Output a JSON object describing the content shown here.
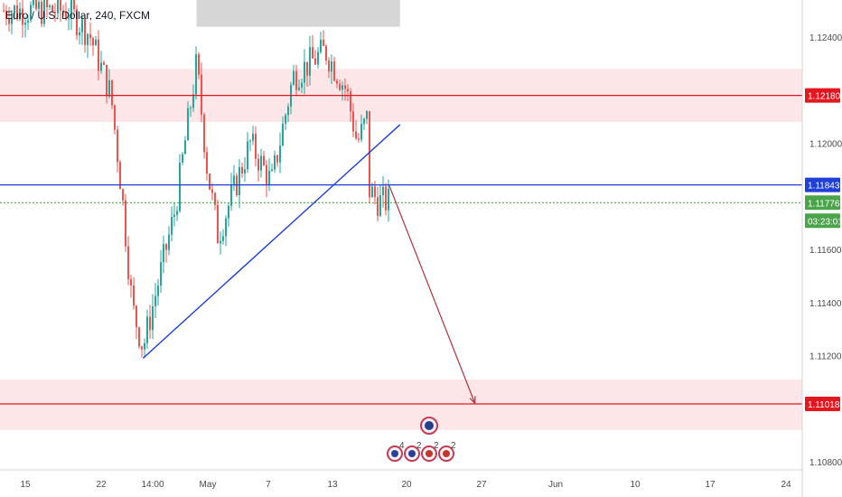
{
  "header": {
    "symbol": "Euro / U.S. Dollar, 240, FXCM"
  },
  "price_axis": {
    "ticks": [
      "1.12400",
      "1.12000",
      "1.11600",
      "1.11400",
      "1.11200",
      "1.10800"
    ],
    "badges": [
      {
        "label": "1.12180",
        "color": "#e4161f"
      },
      {
        "label": "1.11843",
        "color": "#1f3fd6"
      },
      {
        "label": "1.11776",
        "color": "#4aa54a"
      },
      {
        "label": "03:23:01",
        "color": "#4aa54a"
      },
      {
        "label": "1.11018",
        "color": "#e4161f"
      }
    ]
  },
  "time_axis": {
    "ticks": [
      "15",
      "22",
      "14:00",
      "May",
      "7",
      "13",
      "20",
      "27",
      "Jun",
      "10",
      "17",
      "24"
    ]
  },
  "event_badges": [
    "4",
    "2",
    "2",
    "2"
  ],
  "colors": {
    "up": "#26a69a",
    "down": "#ef5350",
    "zone": "#fde3e5",
    "resistance": "#e4161f",
    "trend": "#1f3fd6"
  },
  "chart_data": {
    "type": "candlestick",
    "title": "Euro / U.S. Dollar, 240, FXCM",
    "ylim": [
      1.1077,
      1.1262
    ],
    "x_dates": [
      "Apr 15",
      "Apr 22",
      "May 1",
      "May 7",
      "May 13",
      "May 20",
      "May 27",
      "Jun 1",
      "Jun 10",
      "Jun 17",
      "Jun 24"
    ],
    "price_path": [
      {
        "date": "Apr 19",
        "price": 1.125
      },
      {
        "date": "Apr 21",
        "price": 1.1241
      },
      {
        "date": "Apr 23",
        "price": 1.1218
      },
      {
        "date": "Apr 24",
        "price": 1.1182
      },
      {
        "date": "Apr 25",
        "price": 1.1138
      },
      {
        "date": "Apr 26",
        "price": 1.1123
      },
      {
        "date": "Apr 29",
        "price": 1.1175
      },
      {
        "date": "May 1",
        "price": 1.123
      },
      {
        "date": "May 2",
        "price": 1.119
      },
      {
        "date": "May 3",
        "price": 1.1165
      },
      {
        "date": "May 6",
        "price": 1.12
      },
      {
        "date": "May 8",
        "price": 1.1185
      },
      {
        "date": "May 10",
        "price": 1.1225
      },
      {
        "date": "May 13",
        "price": 1.1235
      },
      {
        "date": "May 15",
        "price": 1.122
      },
      {
        "date": "May 16",
        "price": 1.12
      },
      {
        "date": "May 17",
        "price": 1.121
      },
      {
        "date": "May 17",
        "price": 1.1183
      },
      {
        "date": "May 18",
        "price": 1.1178
      }
    ],
    "zones": [
      {
        "from": 1.1208,
        "to": 1.1228
      },
      {
        "from": 1.1092,
        "to": 1.1111
      }
    ],
    "levels": [
      {
        "price": 1.1218,
        "label": "1.12180",
        "color": "#e4161f"
      },
      {
        "price": 1.11843,
        "label": "1.11843",
        "color": "#1f3fd6"
      },
      {
        "price": 1.11776,
        "label": "1.11776",
        "color": "#4aa54a"
      },
      {
        "price": 1.11018,
        "label": "1.11018",
        "color": "#e4161f"
      }
    ],
    "annotations": [
      {
        "kind": "trendline",
        "from": {
          "date": "Apr 26",
          "price": 1.1119
        },
        "to": {
          "date": "May 20",
          "price": 1.1207
        }
      },
      {
        "kind": "arrow",
        "from": {
          "date": "May 19",
          "price": 1.1184
        },
        "to": {
          "date": "May 27",
          "price": 1.1102
        }
      },
      {
        "kind": "rectangle",
        "from": {
          "date": "May 1",
          "price": 1.1262
        },
        "to": {
          "date": "May 20",
          "price": 1.125
        }
      }
    ]
  }
}
